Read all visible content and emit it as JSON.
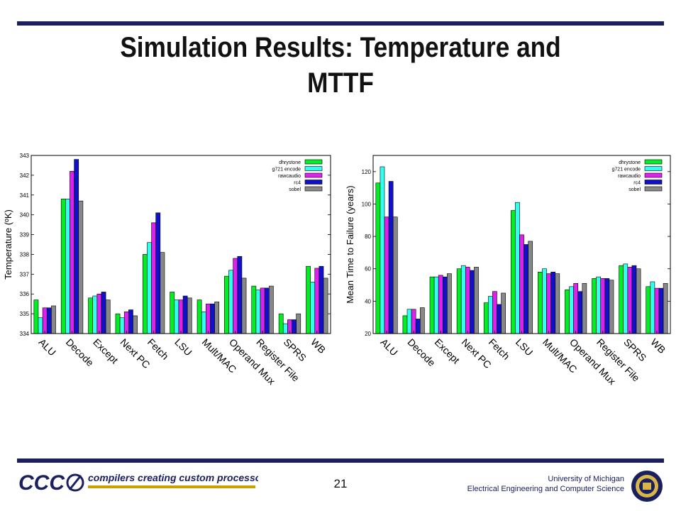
{
  "slide": {
    "title_line1": "Simulation Results: Temperature and",
    "title_line2": "MTTF",
    "page_number": "21",
    "affiliation_line1": "University of Michigan",
    "affiliation_line2": "Electrical Engineering and Computer Science",
    "logo_letters": "CCC",
    "logo_tagline": "compilers creating custom processors"
  },
  "colors": {
    "rule": "#1a1f5e",
    "dhrystone": "#00ee22",
    "g721 encode": "#33ffee",
    "rawcaudio": "#dd22ee",
    "rc4": "#1111cc",
    "sobel": "#888888"
  },
  "chart_data": [
    {
      "type": "bar",
      "ylabel": "Temperature (ºK)",
      "ylim": [
        334,
        343
      ],
      "yticks": [
        334,
        335,
        336,
        337,
        338,
        339,
        340,
        341,
        342,
        343
      ],
      "legend_position": "top-right",
      "grid": false,
      "categories": [
        "ALU",
        "Decode",
        "Except",
        "Next PC",
        "Fetch",
        "LSU",
        "Mult/MAC",
        "Operand Mux",
        "Register File",
        "SPRS",
        "WB"
      ],
      "series": [
        {
          "name": "dhrystone",
          "values": [
            335.7,
            340.8,
            335.8,
            335.0,
            338.0,
            336.1,
            335.7,
            336.9,
            336.4,
            335.0,
            337.4
          ]
        },
        {
          "name": "g721 encode",
          "values": [
            334.8,
            340.8,
            335.9,
            334.8,
            338.6,
            335.7,
            335.1,
            337.2,
            336.2,
            334.5,
            336.6
          ]
        },
        {
          "name": "rawcaudio",
          "values": [
            335.3,
            342.2,
            336.0,
            335.1,
            339.6,
            335.7,
            335.5,
            337.8,
            336.3,
            334.7,
            337.3
          ]
        },
        {
          "name": "rc4",
          "values": [
            335.3,
            342.8,
            336.1,
            335.2,
            340.1,
            335.9,
            335.5,
            337.9,
            336.3,
            334.7,
            337.4
          ]
        },
        {
          "name": "sobel",
          "values": [
            335.4,
            340.7,
            335.7,
            334.9,
            338.1,
            335.8,
            335.6,
            336.8,
            336.4,
            335.0,
            336.8
          ]
        }
      ]
    },
    {
      "type": "bar",
      "ylabel": "Mean Time to Failure (years)",
      "ylim": [
        20,
        130
      ],
      "yticks": [
        20,
        40,
        60,
        80,
        100,
        120
      ],
      "legend_position": "top-right",
      "grid": false,
      "categories": [
        "ALU",
        "Decode",
        "Except",
        "Next PC",
        "Fetch",
        "LSU",
        "Mult/MAC",
        "Operand Mux",
        "Register File",
        "SPRS",
        "WB"
      ],
      "series": [
        {
          "name": "dhrystone",
          "values": [
            113,
            31,
            55,
            60,
            39,
            96,
            58,
            47,
            54,
            62,
            49
          ]
        },
        {
          "name": "g721 encode",
          "values": [
            123,
            35,
            55,
            62,
            43,
            101,
            60,
            49,
            55,
            63,
            52
          ]
        },
        {
          "name": "rawcaudio",
          "values": [
            92,
            35,
            56,
            61,
            46,
            81,
            57,
            51,
            54,
            61,
            48
          ]
        },
        {
          "name": "rc4",
          "values": [
            114,
            29,
            55,
            59,
            38,
            75,
            58,
            46,
            54,
            62,
            48
          ]
        },
        {
          "name": "sobel",
          "values": [
            92,
            36,
            57,
            61,
            45,
            77,
            57,
            51,
            53,
            60,
            51
          ]
        }
      ]
    }
  ]
}
